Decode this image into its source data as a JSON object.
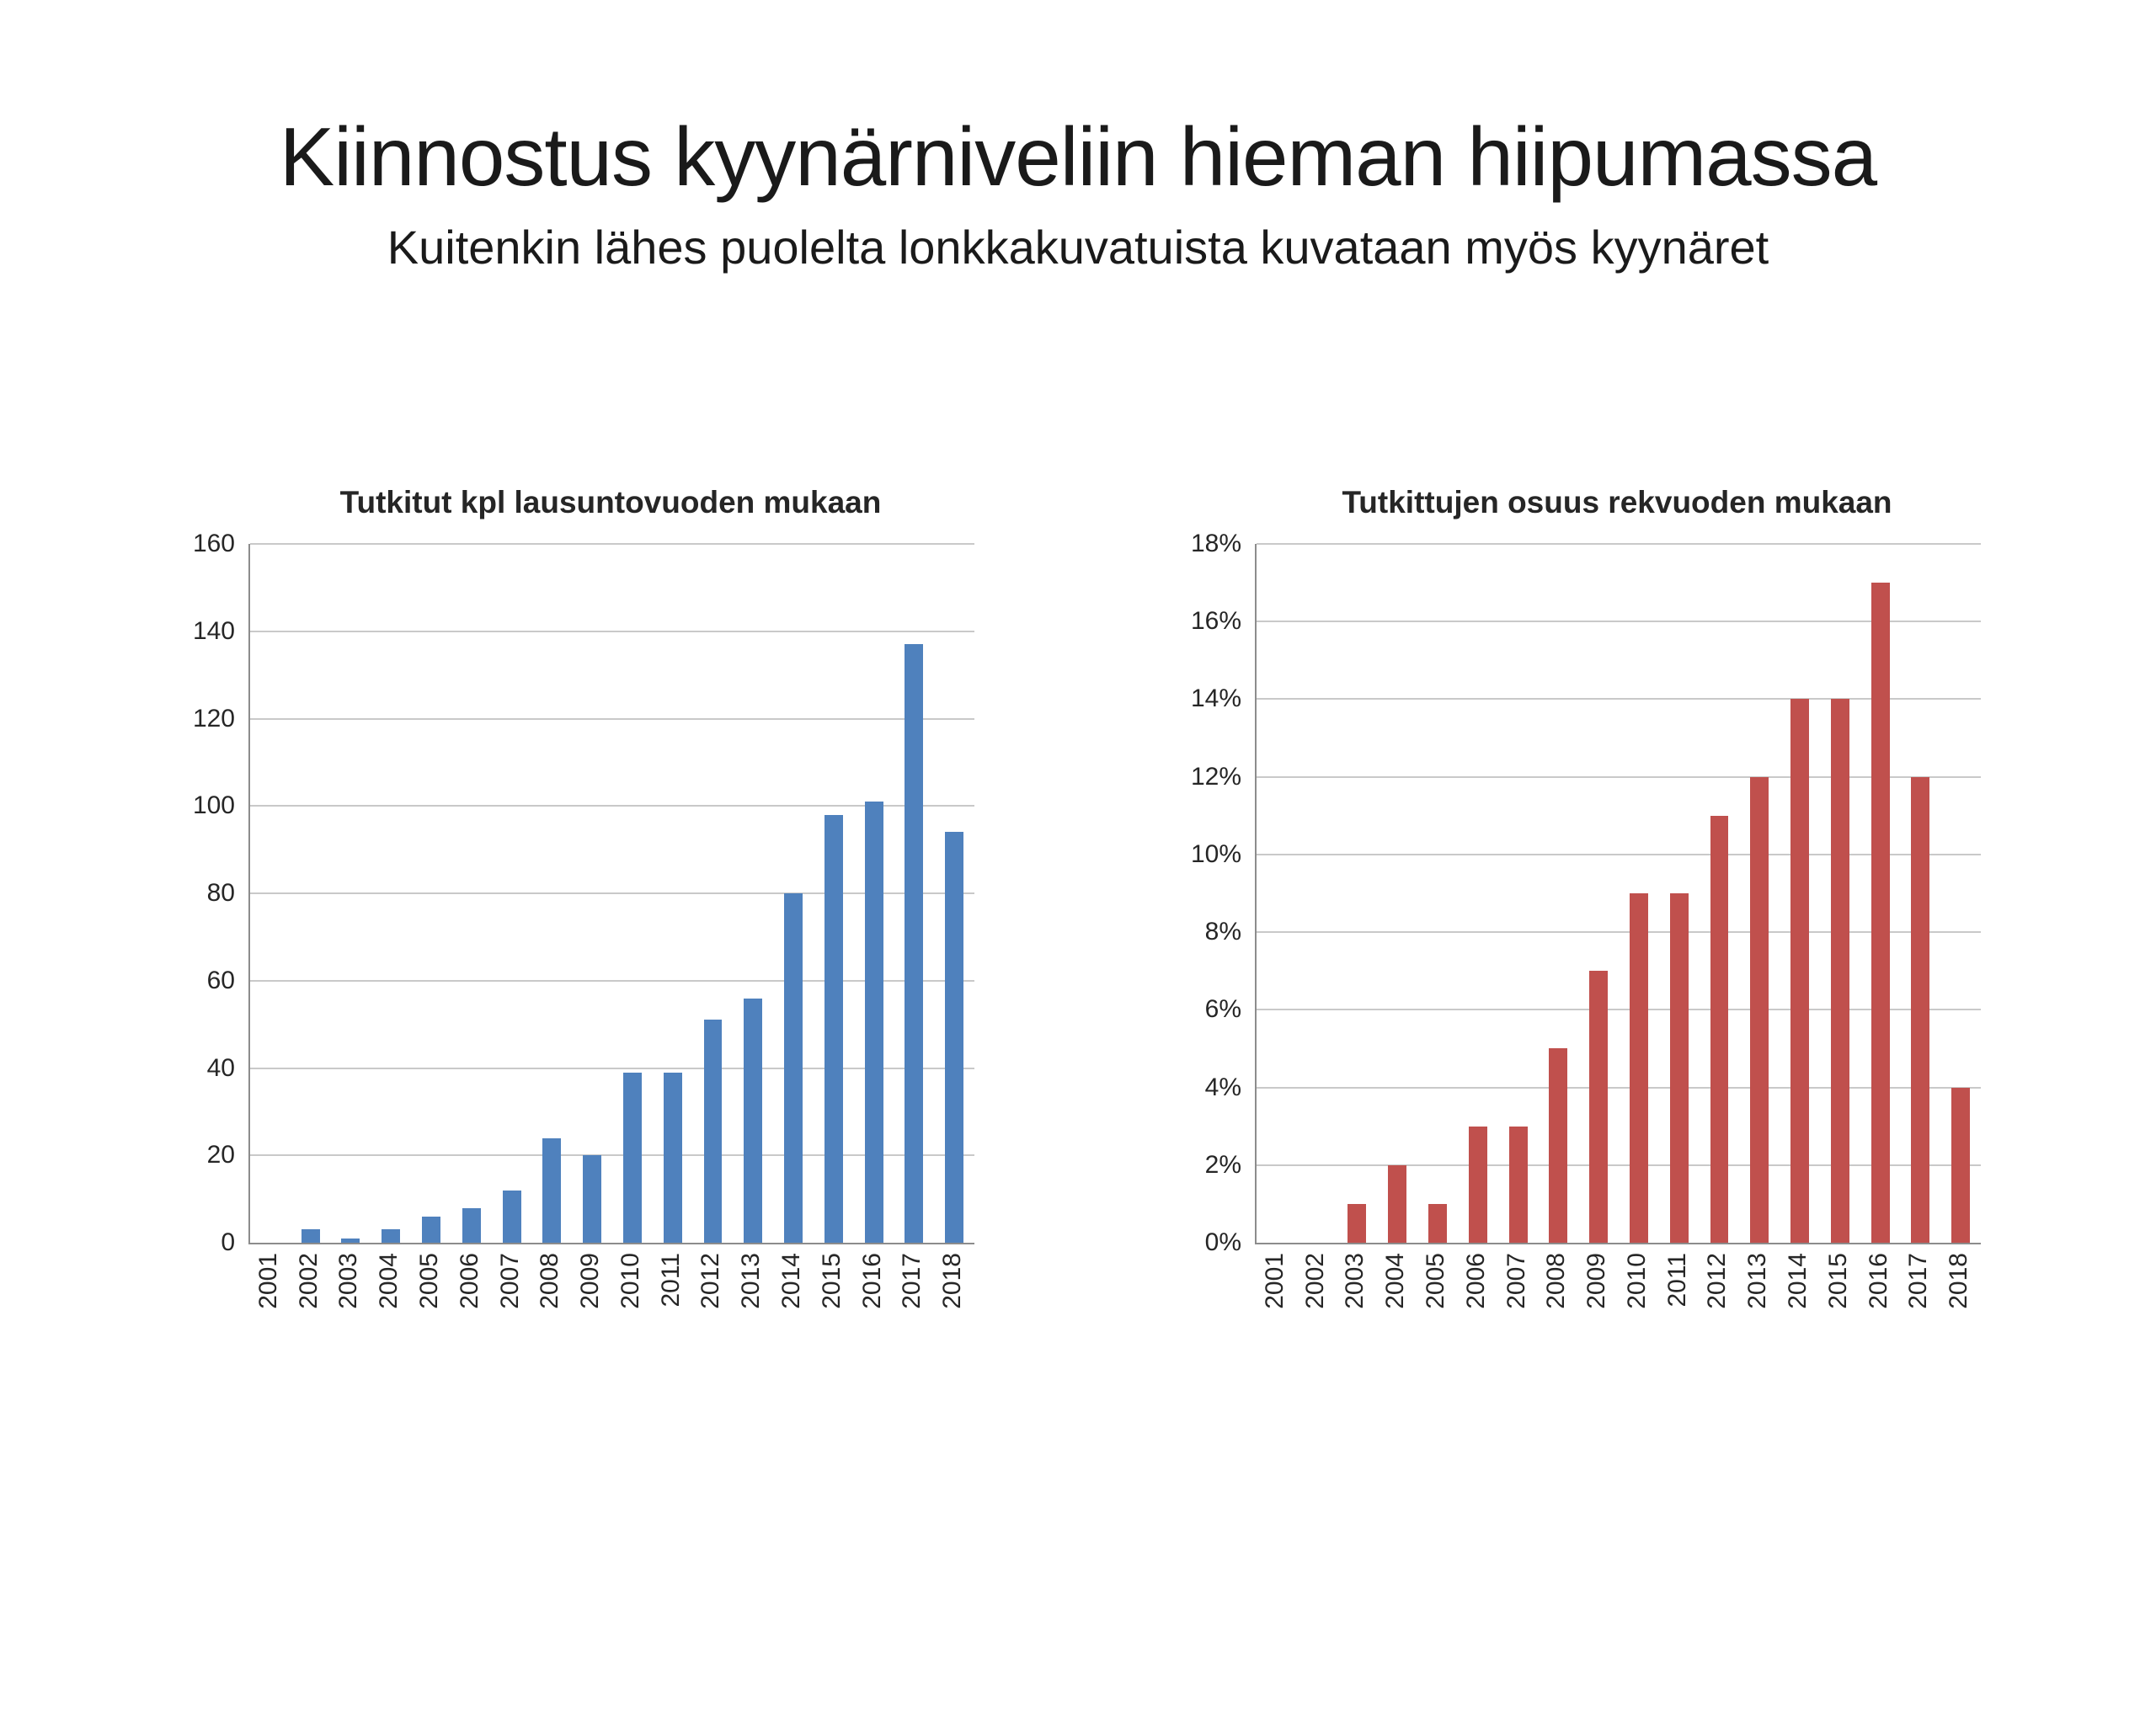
{
  "slide": {
    "title": "Kiinnostus kyynärniveliin hieman hiipumassa",
    "subtitle": "Kuitenkin lähes puolelta lonkkakuvatuista kuvataan myös kyynäret"
  },
  "chart_data": [
    {
      "type": "bar",
      "title": "Tutkitut kpl lausuntovuoden mukaan",
      "categories": [
        "2001",
        "2002",
        "2003",
        "2004",
        "2005",
        "2006",
        "2007",
        "2008",
        "2009",
        "2010",
        "2011",
        "2012",
        "2013",
        "2014",
        "2015",
        "2016",
        "2017",
        "2018"
      ],
      "values": [
        0,
        3,
        1,
        3,
        6,
        8,
        12,
        24,
        20,
        39,
        39,
        51,
        56,
        80,
        98,
        101,
        137,
        94
      ],
      "xlabel": "",
      "ylabel": "",
      "ylim": [
        0,
        160
      ],
      "ytick_step": 20,
      "tick_format": "plain",
      "grid": true,
      "legend": "none",
      "bar_color": "#4f81bd"
    },
    {
      "type": "bar",
      "title": "Tutkittujen osuus rekvuoden mukaan",
      "categories": [
        "2001",
        "2002",
        "2003",
        "2004",
        "2005",
        "2006",
        "2007",
        "2008",
        "2009",
        "2010",
        "2011",
        "2012",
        "2013",
        "2014",
        "2015",
        "2016",
        "2017",
        "2018"
      ],
      "values": [
        0,
        0,
        1,
        2,
        1,
        3,
        3,
        5,
        7,
        9,
        9,
        11,
        12,
        14,
        14,
        17,
        12,
        4
      ],
      "xlabel": "",
      "ylabel": "",
      "ylim": [
        0,
        18
      ],
      "ytick_step": 2,
      "tick_format": "percent",
      "grid": true,
      "legend": "none",
      "bar_color": "#c0504d"
    }
  ]
}
